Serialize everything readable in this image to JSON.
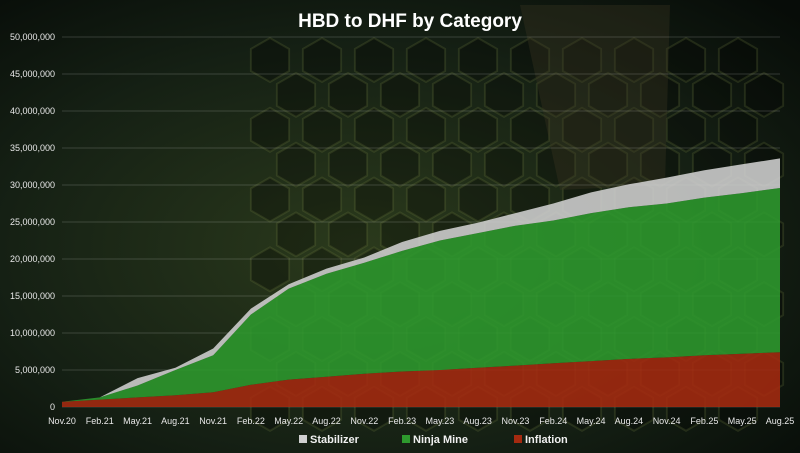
{
  "chart_data": {
    "type": "area",
    "stacked": true,
    "title": "HBD to DHF by Category",
    "xlabel": "",
    "ylabel": "",
    "ylim": [
      0,
      50000000
    ],
    "y_ticks": [
      "0",
      "5,000,000",
      "10,000,000",
      "15,000,000",
      "20,000,000",
      "25,000,000",
      "30,000,000",
      "35,000,000",
      "40,000,000",
      "45,000,000",
      "50,000,000"
    ],
    "x_ticks": [
      "Nov.20",
      "Feb.21",
      "May.21",
      "Aug.21",
      "Nov.21",
      "Feb.22",
      "May.22",
      "Aug.22",
      "Nov.22",
      "Feb.23",
      "May.23",
      "Aug.23",
      "Nov.23",
      "Feb.24",
      "May.24",
      "Aug.24",
      "Nov.24",
      "Feb.25",
      "May.25",
      "Aug.25"
    ],
    "x": [
      "Nov.20",
      "Feb.21",
      "May.21",
      "Aug.21",
      "Nov.21",
      "Feb.22",
      "May.22",
      "Aug.22",
      "Nov.22",
      "Feb.23",
      "May.23",
      "Aug.23",
      "Nov.23",
      "Feb.24",
      "May.24",
      "Aug.24",
      "Nov.24",
      "Feb.25",
      "May.25",
      "Aug.25"
    ],
    "grid": true,
    "legend_position": "bottom",
    "series": [
      {
        "name": "Inflation",
        "color": "#a52a10",
        "values": [
          700000,
          1000000,
          1300000,
          1600000,
          2000000,
          3000000,
          3700000,
          4100000,
          4500000,
          4800000,
          5000000,
          5300000,
          5600000,
          5900000,
          6200000,
          6500000,
          6700000,
          7000000,
          7200000,
          7400000
        ]
      },
      {
        "name": "Ninja Mine",
        "color": "#2e9a2e",
        "values": [
          0,
          300000,
          1600000,
          3400000,
          5000000,
          9500000,
          12300000,
          13900000,
          15000000,
          16300000,
          17500000,
          18200000,
          18900000,
          19300000,
          20000000,
          20500000,
          20800000,
          21300000,
          21700000,
          22200000
        ]
      },
      {
        "name": "Stabilizer",
        "color": "#d0d0d0",
        "values": [
          0,
          0,
          1000000,
          300000,
          900000,
          800000,
          600000,
          700000,
          700000,
          1200000,
          1300000,
          1400000,
          1700000,
          2300000,
          2800000,
          3100000,
          3500000,
          3700000,
          3900000,
          4000000
        ]
      }
    ]
  }
}
